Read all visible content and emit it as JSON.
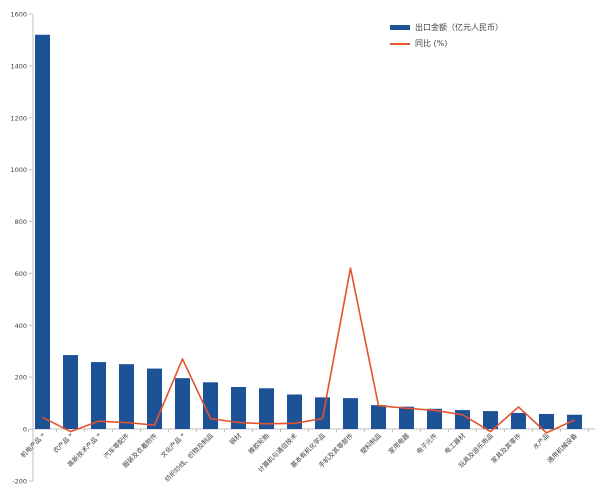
{
  "chart_data": {
    "type": "bar",
    "title": "",
    "xlabel": "",
    "ylabel": "",
    "ylim": [
      -200,
      1600
    ],
    "ytick_step": 200,
    "grid": false,
    "legend_position": "top-right",
    "categories": [
      "机电产品 *",
      "农产品 *",
      "高新技术产品 *",
      "汽车零配件",
      "服装及衣着附件",
      "文化产品 *",
      "纺织纱线、织物及制品",
      "钢材",
      "橡胶轮胎",
      "计算机与通信技术",
      "基本有机化学品",
      "手机及其零部件",
      "塑料制品",
      "家用电器",
      "电子元件",
      "电工器材",
      "玩具及游乐用品",
      "家具及其零件",
      "水产品",
      "通用机械设备"
    ],
    "series": [
      {
        "name": "出口金额（亿元人民币）",
        "type": "bar",
        "color": "#1d5296",
        "values": [
          1520,
          285,
          258,
          250,
          233,
          196,
          180,
          162,
          157,
          133,
          122,
          119,
          92,
          86,
          78,
          73,
          69,
          62,
          58,
          55
        ]
      },
      {
        "name": "同比 (%)",
        "type": "line",
        "color": "#e3532e",
        "values": [
          45,
          -10,
          30,
          25,
          15,
          270,
          40,
          25,
          20,
          22,
          40,
          620,
          90,
          80,
          72,
          55,
          -10,
          85,
          -15,
          35
        ]
      }
    ],
    "yticks": [
      -200,
      0,
      200,
      400,
      600,
      800,
      1000,
      1200,
      1400,
      1600
    ]
  },
  "legend": {
    "bar_label": "出口金额（亿元人民币）",
    "line_label": "同比 (%)"
  },
  "colors": {
    "bar": "#1d5296",
    "line": "#e3532e",
    "axis": "#bfbfbf",
    "text": "#404040"
  }
}
